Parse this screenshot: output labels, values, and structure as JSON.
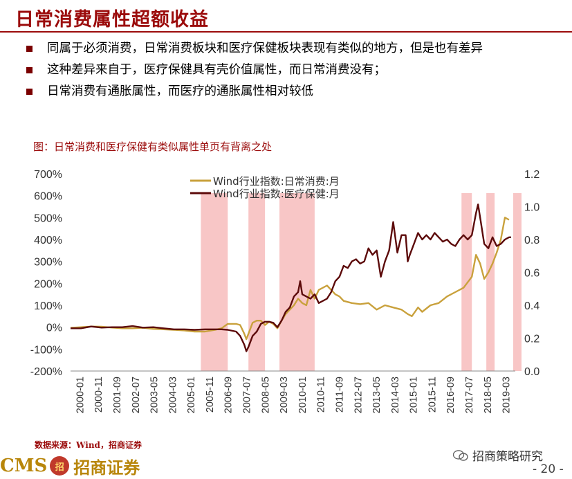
{
  "page": {
    "title": "日常消费属性超额收益",
    "bullets": [
      "同属于必须消费，日常消费板块和医疗保健板块表现有类似的地方，但是也有差异",
      "这种差异来自于，医疗保健具有壳价值属性，而日常消费没有；",
      "日常消费有通胀属性，而医疗的通胀属性相对较低"
    ],
    "figure_caption": "图：日常消费和医疗保健有类似属性单页有背离之处",
    "source": "数据来源：Wind，招商证券",
    "logo_cms": "CMS",
    "logo_badge": "招",
    "logo_text": "招商证券",
    "wechat_name": "招商策略研究",
    "page_number": "- 20 -"
  },
  "colors": {
    "title": "#9b0b0b",
    "consumer_line": "#c9a13c",
    "health_line": "#5c0a0a",
    "shade": "#f8c6c6"
  },
  "chart_data": {
    "type": "line",
    "x_tick_labels": [
      "2000-01",
      "2000-11",
      "2001-09",
      "2002-07",
      "2003-05",
      "2004-03",
      "2005-01",
      "2005-11",
      "2006-09",
      "2007-07",
      "2008-05",
      "2009-03",
      "2010-01",
      "2010-11",
      "2011-09",
      "2012-07",
      "2013-05",
      "2014-03",
      "2015-01",
      "2015-11",
      "2016-09",
      "2017-07",
      "2018-05",
      "2019-03"
    ],
    "y_left": {
      "ticks": [
        "700%",
        "600%",
        "500%",
        "400%",
        "300%",
        "200%",
        "100%",
        "0%",
        "-100%",
        "-200%"
      ],
      "range": [
        -200,
        700
      ]
    },
    "y_right": {
      "ticks": [
        "1.2",
        "1.0",
        "0.8",
        "0.6",
        "0.4",
        "0.2",
        "0.0"
      ],
      "range": [
        0,
        1.2
      ]
    },
    "shaded_periods": [
      [
        63,
        76
      ],
      [
        86,
        94
      ],
      [
        101,
        118
      ],
      [
        189,
        194
      ],
      [
        201,
        205
      ],
      [
        214,
        218
      ]
    ],
    "series": [
      {
        "name": "Wind行业指数:日常消费:月",
        "axis": "left",
        "points": [
          [
            0,
            -3
          ],
          [
            5,
            0
          ],
          [
            10,
            3
          ],
          [
            15,
            2
          ],
          [
            20,
            -2
          ],
          [
            25,
            -5
          ],
          [
            30,
            -5
          ],
          [
            35,
            -3
          ],
          [
            40,
            -8
          ],
          [
            45,
            -10
          ],
          [
            50,
            -12
          ],
          [
            55,
            -15
          ],
          [
            60,
            -20
          ],
          [
            65,
            -20
          ],
          [
            70,
            -12
          ],
          [
            73,
            -5
          ],
          [
            76,
            15
          ],
          [
            80,
            15
          ],
          [
            82,
            10
          ],
          [
            84,
            -30
          ],
          [
            85,
            -55
          ],
          [
            86,
            -30
          ],
          [
            88,
            20
          ],
          [
            90,
            30
          ],
          [
            92,
            30
          ],
          [
            94,
            10
          ],
          [
            96,
            25
          ],
          [
            98,
            15
          ],
          [
            100,
            -5
          ],
          [
            102,
            30
          ],
          [
            104,
            60
          ],
          [
            106,
            80
          ],
          [
            108,
            100
          ],
          [
            110,
            130
          ],
          [
            112,
            110
          ],
          [
            114,
            100
          ],
          [
            116,
            170
          ],
          [
            118,
            130
          ],
          [
            120,
            170
          ],
          [
            124,
            190
          ],
          [
            128,
            150
          ],
          [
            130,
            140
          ],
          [
            132,
            120
          ],
          [
            136,
            110
          ],
          [
            140,
            105
          ],
          [
            144,
            110
          ],
          [
            148,
            80
          ],
          [
            152,
            100
          ],
          [
            156,
            90
          ],
          [
            160,
            80
          ],
          [
            163,
            60
          ],
          [
            165,
            50
          ],
          [
            168,
            90
          ],
          [
            170,
            70
          ],
          [
            174,
            100
          ],
          [
            178,
            110
          ],
          [
            182,
            140
          ],
          [
            186,
            160
          ],
          [
            190,
            180
          ],
          [
            194,
            230
          ],
          [
            196,
            330
          ],
          [
            198,
            290
          ],
          [
            200,
            220
          ],
          [
            202,
            250
          ],
          [
            204,
            290
          ],
          [
            206,
            340
          ],
          [
            208,
            400
          ],
          [
            210,
            500
          ],
          [
            212,
            490
          ]
        ]
      },
      {
        "name": "Wind行业指数:医疗保健:月",
        "axis": "left",
        "points": [
          [
            0,
            -5
          ],
          [
            5,
            -5
          ],
          [
            10,
            3
          ],
          [
            15,
            -2
          ],
          [
            20,
            0
          ],
          [
            25,
            0
          ],
          [
            30,
            5
          ],
          [
            35,
            -2
          ],
          [
            40,
            0
          ],
          [
            45,
            -5
          ],
          [
            50,
            -10
          ],
          [
            55,
            -10
          ],
          [
            60,
            -12
          ],
          [
            65,
            -10
          ],
          [
            70,
            -10
          ],
          [
            73,
            -10
          ],
          [
            76,
            -12
          ],
          [
            80,
            -20
          ],
          [
            82,
            -40
          ],
          [
            84,
            -80
          ],
          [
            85,
            -110
          ],
          [
            86,
            -90
          ],
          [
            88,
            -40
          ],
          [
            90,
            -20
          ],
          [
            92,
            15
          ],
          [
            94,
            25
          ],
          [
            96,
            25
          ],
          [
            98,
            20
          ],
          [
            100,
            0
          ],
          [
            102,
            30
          ],
          [
            104,
            70
          ],
          [
            106,
            90
          ],
          [
            108,
            140
          ],
          [
            110,
            160
          ],
          [
            111,
            210
          ],
          [
            112,
            150
          ],
          [
            114,
            140
          ],
          [
            116,
            130
          ],
          [
            118,
            150
          ],
          [
            120,
            110
          ],
          [
            124,
            130
          ],
          [
            126,
            160
          ],
          [
            128,
            210
          ],
          [
            130,
            230
          ],
          [
            132,
            280
          ],
          [
            134,
            270
          ],
          [
            136,
            300
          ],
          [
            138,
            310
          ],
          [
            140,
            290
          ],
          [
            142,
            300
          ],
          [
            144,
            360
          ],
          [
            146,
            330
          ],
          [
            148,
            350
          ],
          [
            150,
            230
          ],
          [
            152,
            300
          ],
          [
            154,
            350
          ],
          [
            156,
            480
          ],
          [
            157,
            410
          ],
          [
            158,
            340
          ],
          [
            160,
            420
          ],
          [
            162,
            420
          ],
          [
            163,
            300
          ],
          [
            164,
            330
          ],
          [
            166,
            380
          ],
          [
            168,
            430
          ],
          [
            170,
            400
          ],
          [
            172,
            420
          ],
          [
            174,
            400
          ],
          [
            176,
            430
          ],
          [
            178,
            410
          ],
          [
            180,
            390
          ],
          [
            182,
            400
          ],
          [
            184,
            380
          ],
          [
            186,
            370
          ],
          [
            188,
            400
          ],
          [
            190,
            420
          ],
          [
            192,
            400
          ],
          [
            194,
            420
          ],
          [
            196,
            520
          ],
          [
            197,
            560
          ],
          [
            198,
            500
          ],
          [
            200,
            380
          ],
          [
            202,
            360
          ],
          [
            204,
            410
          ],
          [
            206,
            370
          ],
          [
            208,
            380
          ],
          [
            210,
            400
          ],
          [
            212,
            410
          ],
          [
            213,
            410
          ]
        ]
      }
    ]
  }
}
